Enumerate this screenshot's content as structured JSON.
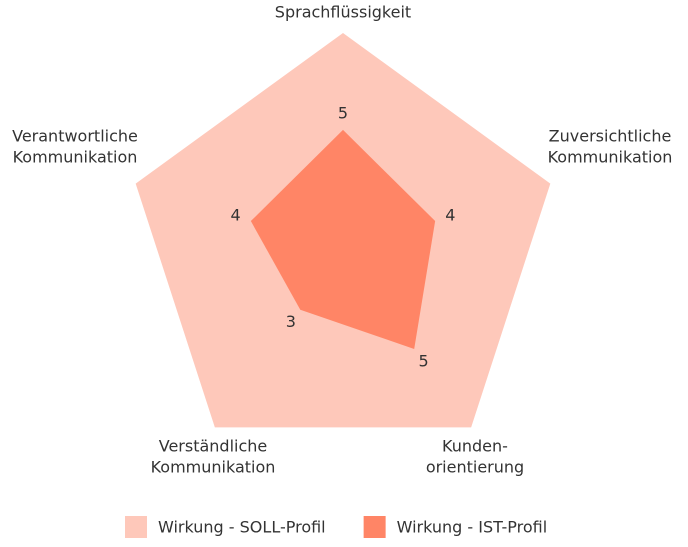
{
  "chart_data": {
    "type": "radar",
    "categories": [
      [
        "Sprachflüssigkeit"
      ],
      [
        "Zuversichtliche",
        "Kommunikation"
      ],
      [
        "Kunden-",
        "orientierung"
      ],
      [
        "Verständliche",
        "Kommunikation"
      ],
      [
        "Verantwortliche",
        "Kommunikation"
      ]
    ],
    "rlim": [
      0,
      9
    ],
    "series": [
      {
        "name": "Wirkung - SOLL-Profil",
        "color": "#fec8ba",
        "values": [
          9,
          9,
          9,
          9,
          9
        ]
      },
      {
        "name": "Wirkung - IST-Profil",
        "color": "#ff8566",
        "values": [
          5,
          4,
          5,
          3,
          4
        ],
        "show_labels": true
      }
    ]
  }
}
